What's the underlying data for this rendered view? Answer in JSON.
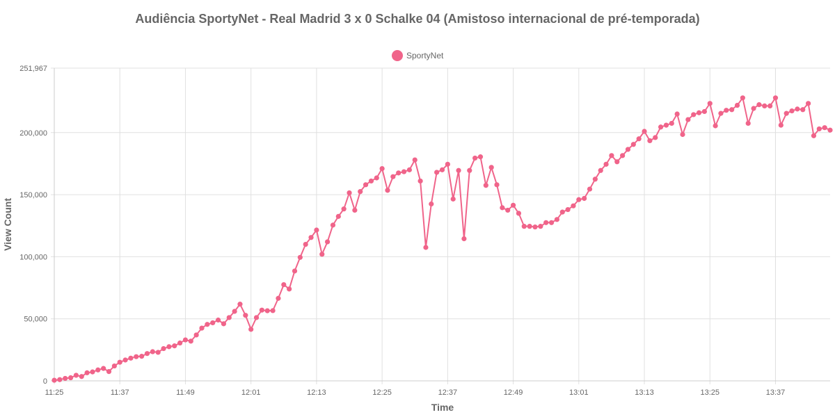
{
  "chart_data": {
    "type": "line",
    "title": "Audiência SportyNet - Real Madrid 3 x 0 Schalke 04 (Amistoso internacional de pré-temporada)",
    "xlabel": "Time",
    "ylabel": "View Count",
    "ylim": [
      0,
      251967
    ],
    "y_ticks": [
      "0",
      "50,000",
      "100,000",
      "150,000",
      "200,000",
      "251,967"
    ],
    "x_ticks": [
      "11:25",
      "11:37",
      "11:49",
      "12:01",
      "12:13",
      "12:25",
      "12:37",
      "12:49",
      "13:01",
      "13:13",
      "13:25",
      "13:37"
    ],
    "x_start": "11:25",
    "x_interval_minutes": 1,
    "grid": true,
    "legend_position": "top",
    "series": [
      {
        "name": "SportyNet",
        "color": "#f0648a",
        "values": [
          500,
          1000,
          2000,
          2500,
          4500,
          3500,
          6500,
          7200,
          8800,
          10000,
          7500,
          12000,
          15000,
          16800,
          18300,
          19500,
          19800,
          22000,
          23500,
          23000,
          26000,
          27500,
          28200,
          30500,
          33000,
          32000,
          37000,
          42500,
          45500,
          46800,
          49000,
          46000,
          51000,
          56000,
          61800,
          52800,
          41500,
          51000,
          57000,
          56500,
          56600,
          66500,
          77500,
          74000,
          88500,
          99500,
          110000,
          115500,
          121500,
          102000,
          112000,
          125500,
          132500,
          138500,
          151500,
          137500,
          152500,
          158000,
          161000,
          163500,
          171000,
          153500,
          164500,
          167500,
          168500,
          170000,
          178000,
          161000,
          107500,
          142500,
          168000,
          170000,
          174500,
          146500,
          169500,
          114500,
          169500,
          179500,
          180500,
          157500,
          172000,
          158000,
          139500,
          137500,
          141500,
          135000,
          124500,
          124500,
          124000,
          124500,
          127500,
          127500,
          130000,
          136000,
          138000,
          141000,
          146000,
          147000,
          154500,
          162500,
          169500,
          174500,
          181500,
          176500,
          181500,
          186500,
          190500,
          195000,
          201000,
          193500,
          196000,
          204500,
          206000,
          207500,
          215000,
          198500,
          210500,
          214500,
          216000,
          217000,
          223500,
          205500,
          215500,
          218000,
          218500,
          222000,
          228000,
          207500,
          219500,
          222500,
          221500,
          221500,
          228000,
          206000,
          215500,
          217500,
          219000,
          218500,
          223500,
          197500,
          203000,
          204000,
          202000
        ]
      }
    ]
  }
}
